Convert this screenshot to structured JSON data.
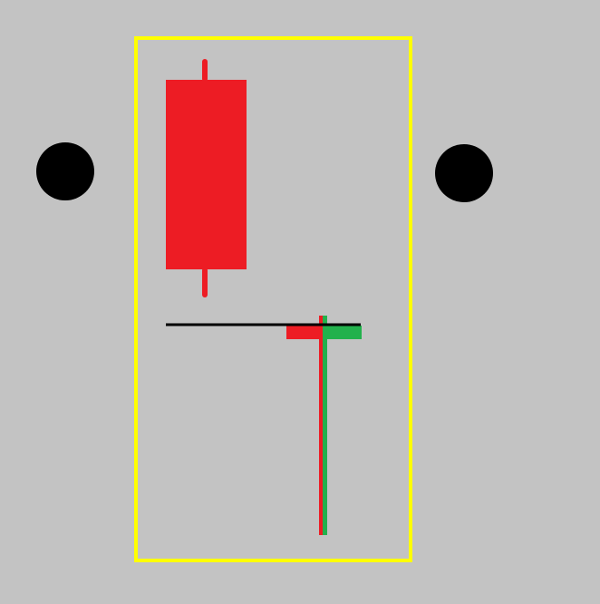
{
  "colors": {
    "background": "#c3c3c3",
    "frame": "#ffff00",
    "bearish": "#ed1c24",
    "bullish": "#22b14c",
    "level_line": "#000000",
    "dots": "#000000"
  },
  "elements": {
    "left_dot": "black-circle",
    "right_dot": "black-circle",
    "frame": "yellow-rectangle",
    "large_candle": "red-bearish-candlestick",
    "reference_line": "black-horizontal-line",
    "small_red_candle": "red-hammer-candlestick",
    "small_green_candle": "green-hammer-candlestick"
  }
}
